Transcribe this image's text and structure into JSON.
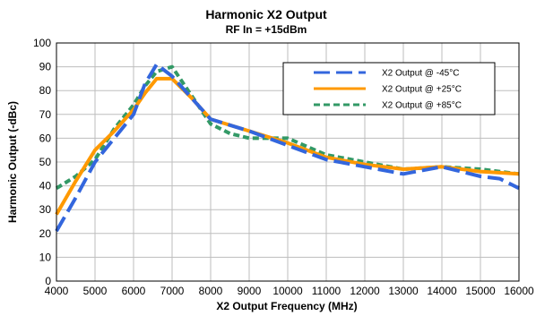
{
  "chart_data": {
    "type": "line",
    "title": "Harmonic X2 Output",
    "subtitle": "RF In = +15dBm",
    "xlabel": "X2 Output Frequency (MHz)",
    "ylabel": "Harmonic Output (-dBc)",
    "xlim": [
      4000,
      16000
    ],
    "ylim": [
      0,
      100
    ],
    "x_ticks": [
      4000,
      5000,
      6000,
      7000,
      8000,
      9000,
      10000,
      11000,
      12000,
      13000,
      14000,
      15000,
      16000
    ],
    "y_ticks": [
      0,
      10,
      20,
      30,
      40,
      50,
      60,
      70,
      80,
      90,
      100
    ],
    "grid": true,
    "legend_position": "top-right",
    "series": [
      {
        "name": "X2 Output @ -45°C",
        "color": "#3366dd",
        "dash": "long-dash",
        "x": [
          4000,
          4500,
          5000,
          5500,
          6000,
          6300,
          6600,
          7000,
          7500,
          8000,
          9000,
          10000,
          11000,
          12000,
          13000,
          14000,
          15000,
          15500,
          16000
        ],
        "y": [
          21,
          35,
          50,
          60,
          70,
          83,
          91,
          86,
          77,
          68,
          63,
          57,
          51,
          48,
          45,
          48,
          44,
          43,
          39
        ]
      },
      {
        "name": "X2 Output @ +25°C",
        "color": "#ff9900",
        "dash": "solid",
        "x": [
          4000,
          4500,
          5000,
          5500,
          6000,
          6300,
          6600,
          7000,
          7500,
          8000,
          9000,
          10000,
          11000,
          12000,
          13000,
          14000,
          15000,
          16000
        ],
        "y": [
          28,
          42,
          55,
          63,
          72,
          79,
          85,
          85,
          77,
          68,
          63,
          58,
          52,
          49,
          47,
          48,
          46,
          45
        ]
      },
      {
        "name": "X2 Output @ +85°C",
        "color": "#339966",
        "dash": "short-dash",
        "x": [
          4000,
          4500,
          5000,
          5500,
          6000,
          6300,
          6600,
          7000,
          7500,
          8000,
          8500,
          9000,
          10000,
          11000,
          12000,
          13000,
          14000,
          15000,
          16000
        ],
        "y": [
          39,
          44,
          51,
          64,
          74,
          82,
          88,
          90,
          78,
          66,
          62,
          60,
          60,
          53,
          50,
          47,
          48,
          47,
          45
        ]
      }
    ]
  }
}
